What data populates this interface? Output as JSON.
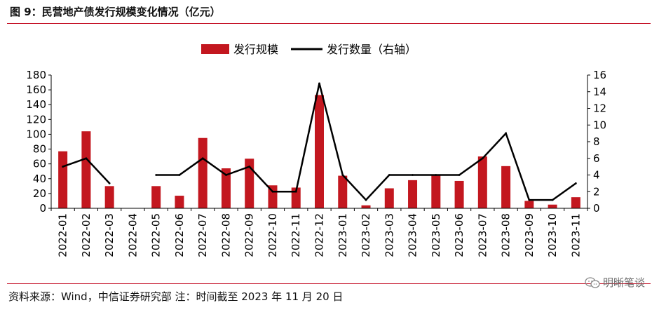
{
  "header": {
    "title": "图 9：民营地产债发行规模变化情况（亿元）"
  },
  "footer": {
    "source": "资料来源：Wind，中信证券研究部  注：时间截至 2023 年 11 月 20 日"
  },
  "watermark": {
    "text": "明晰笔谈",
    "icon": "wechat-icon"
  },
  "colors": {
    "bar": "#c3171f",
    "line": "#000000",
    "rule": "#c6152b"
  },
  "chart_data": {
    "type": "bar",
    "legend": {
      "position": "top-center"
    },
    "grid": false,
    "categories": [
      "2022-01",
      "2022-02",
      "2022-03",
      "2022-04",
      "2022-05",
      "2022-06",
      "2022-07",
      "2022-08",
      "2022-09",
      "2022-10",
      "2022-11",
      "2022-12",
      "2023-01",
      "2023-02",
      "2023-03",
      "2023-04",
      "2023-05",
      "2023-06",
      "2023-07",
      "2023-08",
      "2023-09",
      "2023-10",
      "2023-11"
    ],
    "series": [
      {
        "name": "发行规模",
        "type": "bar",
        "axis": "left",
        "values": [
          77,
          104,
          30,
          0,
          30,
          17,
          95,
          54,
          67,
          31,
          28,
          153,
          44,
          4,
          27,
          38,
          45,
          37,
          70,
          57,
          10,
          5,
          15
        ]
      },
      {
        "name": "发行数量（右轴）",
        "type": "line",
        "axis": "right",
        "values": [
          5,
          6,
          3,
          null,
          4,
          4,
          6,
          4,
          5,
          2,
          2,
          15,
          4,
          1,
          4,
          4,
          4,
          4,
          6,
          9,
          1,
          1,
          3
        ]
      }
    ],
    "y_left": {
      "lim": [
        0,
        180
      ],
      "ticks": [
        "0",
        "20",
        "40",
        "60",
        "80",
        "100",
        "120",
        "140",
        "160",
        "180"
      ]
    },
    "y_right": {
      "lim": [
        0,
        16
      ],
      "ticks": [
        "0",
        "2",
        "4",
        "6",
        "8",
        "10",
        "12",
        "14",
        "16"
      ]
    }
  }
}
